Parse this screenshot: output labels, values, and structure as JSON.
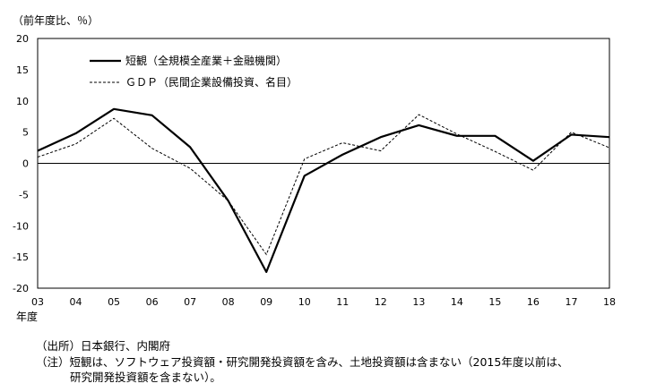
{
  "chart_data": {
    "type": "line",
    "y_unit_label": "（前年度比、％）",
    "x_unit_label": "年度",
    "categories": [
      "03",
      "04",
      "05",
      "06",
      "07",
      "08",
      "09",
      "10",
      "11",
      "12",
      "13",
      "14",
      "15",
      "16",
      "17",
      "18"
    ],
    "ylim": [
      -20,
      20
    ],
    "yticks": [
      20,
      15,
      10,
      5,
      0,
      -5,
      -10,
      -15,
      -20
    ],
    "zero_line": true,
    "grid": false,
    "legend_position": "top-left",
    "series": [
      {
        "name": "短観（全規模全産業＋金融機関）",
        "style": "solid",
        "color": "#000000",
        "values": [
          2.0,
          4.8,
          8.7,
          7.7,
          2.6,
          -6.0,
          -17.4,
          -2.0,
          1.4,
          4.2,
          6.1,
          4.4,
          4.4,
          0.4,
          4.6,
          4.2
        ]
      },
      {
        "name": "ＧＤＰ（民間企業設備投資、名目）",
        "style": "dashed",
        "color": "#000000",
        "values": [
          1.0,
          3.1,
          7.2,
          2.4,
          -0.8,
          -6.0,
          -14.6,
          0.7,
          3.3,
          2.0,
          7.8,
          4.7,
          1.9,
          -1.1,
          5.0,
          2.5
        ]
      }
    ]
  },
  "notes": {
    "source": "（出所）日本銀行、内閣府",
    "note_line1": "（注）短観は、ソフトウェア投資額・研究開発投資額を含み、土地投資額は含まない（2015年度以前は、",
    "note_line2": "研究開発投資額を含まない）。"
  }
}
